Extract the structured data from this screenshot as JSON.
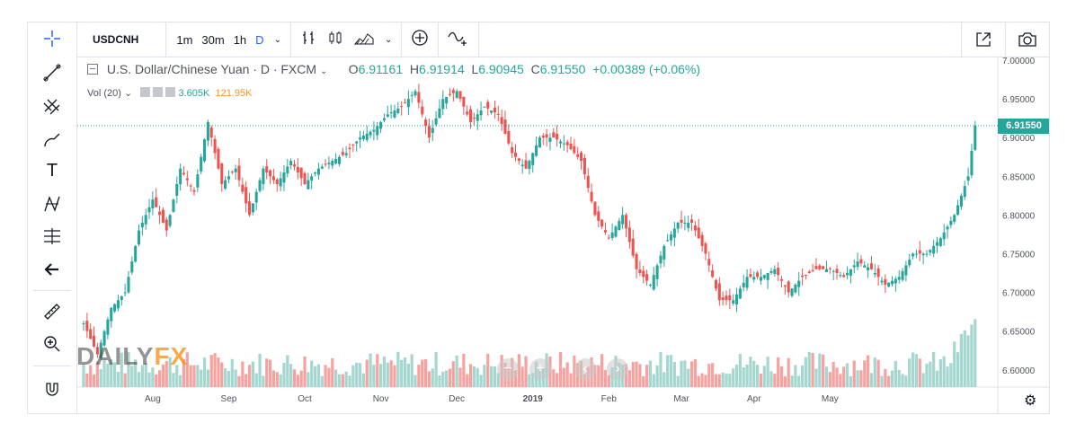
{
  "toolbar": {
    "symbol": "USDCNH",
    "intervals": [
      "1m",
      "30m",
      "1h",
      "D"
    ],
    "active_interval": "D",
    "icons": [
      "chevron-down-icon",
      "bar-style-icon",
      "candle-style-icon",
      "area-style-icon",
      "chevron-down-icon",
      "add-indicator-icon",
      "compare-icon"
    ],
    "right_icons": [
      "share-icon",
      "camera-icon"
    ]
  },
  "left_tools": [
    "crosshair-icon",
    "trendline-icon",
    "fib-icon",
    "brush-icon",
    "text-icon",
    "pattern-icon",
    "measure-icon",
    "back-arrow-icon",
    "ruler-icon",
    "zoom-in-icon",
    "magnet-icon"
  ],
  "legend": {
    "title": "U.S. Dollar/Chinese Yuan · D · FXCM",
    "o_label": "O",
    "o": "6.91161",
    "h_label": "H",
    "h": "6.91914",
    "l_label": "L",
    "l": "6.90945",
    "c_label": "C",
    "c": "6.91550",
    "change": "+0.00389 (+0.06%)",
    "vol_label": "Vol (20)",
    "vol1": "3.605K",
    "vol2": "121.95K"
  },
  "price_tag": "6.91550",
  "watermark": {
    "a": "DAILY",
    "b": "FX"
  },
  "colors": {
    "up": "#26a69a",
    "down": "#ef5350",
    "vol_up": "#a5d6d0",
    "vol_down": "#f5a3a1",
    "accent": "#2962ff"
  },
  "chart_data": {
    "type": "candlestick",
    "x_ticks": [
      "Aug",
      "Sep",
      "Oct",
      "Nov",
      "Dec",
      "2019",
      "Feb",
      "Mar",
      "Apr",
      "May"
    ],
    "y_ticks": [
      "7.00000",
      "6.95000",
      "6.90000",
      "6.85000",
      "6.80000",
      "6.75000",
      "6.70000",
      "6.65000",
      "6.60000"
    ],
    "ylim": [
      6.58,
      7.0
    ],
    "last_close": 6.9155,
    "close_path": [
      [
        0,
        6.66
      ],
      [
        4,
        6.62
      ],
      [
        8,
        6.68
      ],
      [
        12,
        6.7
      ],
      [
        16,
        6.78
      ],
      [
        20,
        6.82
      ],
      [
        24,
        6.78
      ],
      [
        28,
        6.86
      ],
      [
        32,
        6.83
      ],
      [
        36,
        6.92
      ],
      [
        40,
        6.84
      ],
      [
        44,
        6.86
      ],
      [
        48,
        6.8
      ],
      [
        52,
        6.86
      ],
      [
        56,
        6.84
      ],
      [
        60,
        6.87
      ],
      [
        64,
        6.84
      ],
      [
        68,
        6.86
      ],
      [
        72,
        6.87
      ],
      [
        76,
        6.88
      ],
      [
        80,
        6.9
      ],
      [
        84,
        6.91
      ],
      [
        88,
        6.93
      ],
      [
        92,
        6.94
      ],
      [
        96,
        6.96
      ],
      [
        100,
        6.9
      ],
      [
        104,
        6.95
      ],
      [
        108,
        6.96
      ],
      [
        112,
        6.92
      ],
      [
        116,
        6.94
      ],
      [
        120,
        6.93
      ],
      [
        124,
        6.88
      ],
      [
        128,
        6.86
      ],
      [
        132,
        6.9
      ],
      [
        136,
        6.9
      ],
      [
        140,
        6.89
      ],
      [
        144,
        6.87
      ],
      [
        148,
        6.8
      ],
      [
        152,
        6.77
      ],
      [
        156,
        6.8
      ],
      [
        160,
        6.73
      ],
      [
        164,
        6.71
      ],
      [
        168,
        6.76
      ],
      [
        172,
        6.79
      ],
      [
        176,
        6.79
      ],
      [
        180,
        6.75
      ],
      [
        184,
        6.69
      ],
      [
        188,
        6.69
      ],
      [
        192,
        6.72
      ],
      [
        196,
        6.72
      ],
      [
        200,
        6.73
      ],
      [
        204,
        6.7
      ],
      [
        208,
        6.72
      ],
      [
        212,
        6.73
      ],
      [
        216,
        6.73
      ],
      [
        220,
        6.72
      ],
      [
        224,
        6.74
      ],
      [
        228,
        6.73
      ],
      [
        232,
        6.71
      ],
      [
        236,
        6.72
      ],
      [
        240,
        6.75
      ],
      [
        244,
        6.75
      ],
      [
        248,
        6.77
      ],
      [
        252,
        6.8
      ],
      [
        256,
        6.85
      ],
      [
        258,
        6.9155
      ]
    ]
  }
}
